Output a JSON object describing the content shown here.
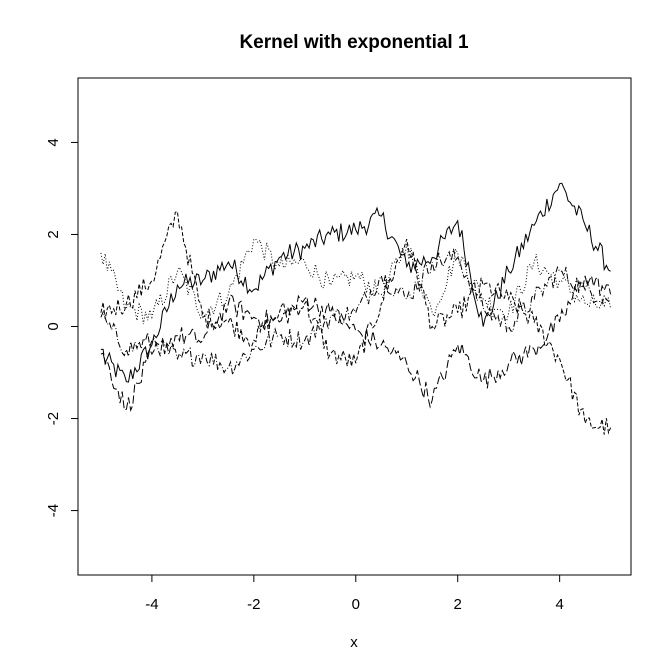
{
  "chart_data": {
    "type": "line",
    "title": "Kernel with exponential 1",
    "xlabel": "x",
    "ylabel": "",
    "xlim": [
      -5.45,
      5.4
    ],
    "ylim": [
      -5.4,
      5.4
    ],
    "xticks": [
      "-4",
      "-2",
      "0",
      "2",
      "4"
    ],
    "yticks": [
      "-4",
      "-2",
      "0",
      "2",
      "4"
    ],
    "grid": false,
    "legend": "none",
    "x": [
      -5.0,
      -4.5,
      -4.0,
      -3.5,
      -3.0,
      -2.5,
      -2.0,
      -1.5,
      -1.0,
      -0.5,
      0.0,
      0.5,
      1.0,
      1.5,
      2.0,
      2.5,
      3.0,
      3.5,
      4.0,
      4.5,
      5.0
    ],
    "series": [
      {
        "values": [
          -0.6,
          -1.2,
          -0.4,
          0.9,
          1.0,
          1.4,
          0.8,
          1.5,
          1.7,
          2.0,
          2.1,
          2.4,
          1.3,
          1.5,
          2.3,
          0.0,
          1.2,
          2.2,
          3.1,
          2.2,
          1.2
        ],
        "dash": ""
      },
      {
        "values": [
          1.6,
          0.4,
          0.2,
          1.2,
          0.3,
          0.7,
          1.9,
          1.3,
          1.4,
          0.9,
          1.1,
          0.7,
          1.8,
          0.3,
          1.6,
          0.6,
          0.3,
          1.4,
          1.0,
          0.5,
          0.4
        ],
        "dash": "1,2"
      },
      {
        "values": [
          0.3,
          0.5,
          1.0,
          2.5,
          0.2,
          0.1,
          -0.3,
          0.3,
          0.5,
          -0.6,
          -0.8,
          0.5,
          1.9,
          0.0,
          0.3,
          0.9,
          0.6,
          0.1,
          -0.7,
          -2.1,
          -2.2
        ],
        "dash": "4,2"
      },
      {
        "values": [
          0.2,
          -0.5,
          -0.3,
          -0.7,
          -0.6,
          -0.9,
          -0.5,
          -0.2,
          -0.3,
          0.2,
          0.3,
          1.1,
          0.6,
          1.4,
          1.5,
          0.4,
          0.0,
          0.6,
          1.2,
          0.8,
          0.6
        ],
        "dash": "6,2,1,2"
      },
      {
        "values": [
          -0.5,
          -1.8,
          -0.6,
          -0.2,
          -0.3,
          0.5,
          0.2,
          0.1,
          0.6,
          0.3,
          -0.1,
          -0.4,
          -0.8,
          -1.6,
          -0.4,
          -1.2,
          -0.8,
          -0.5,
          0.1,
          1.1,
          0.7
        ],
        "dash": "8,3"
      }
    ]
  }
}
